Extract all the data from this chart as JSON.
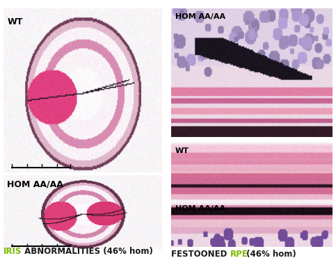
{
  "left_panel": {
    "label_top": "WT",
    "label_bottom": "HOM AA/AA",
    "caption_colored": "IRIS",
    "caption_colored_color": "#7ab800",
    "caption_rest": " ABNORMALITIES (46% hom)",
    "caption_rest_color": "#1a1a1a",
    "caption_fontsize": 8.5,
    "label_fontsize": 9
  },
  "right_top_panel": {
    "label": "HOM AA/AA",
    "label_fontsize": 8
  },
  "right_bottom_panel": {
    "label_top": "WT",
    "label_bottom": "HOM AA/AA",
    "caption_part1": "FESTOONED ",
    "caption_part1_color": "#1a1a1a",
    "caption_rpe": "RPE",
    "caption_rpe_color": "#7ab800",
    "caption_part2": " (46% hom)",
    "caption_part2_color": "#1a1a1a",
    "caption_fontsize": 8.5,
    "label_fontsize": 8
  },
  "background_color": "#ffffff",
  "fig_width": 4.83,
  "fig_height": 3.94,
  "dpi": 100
}
